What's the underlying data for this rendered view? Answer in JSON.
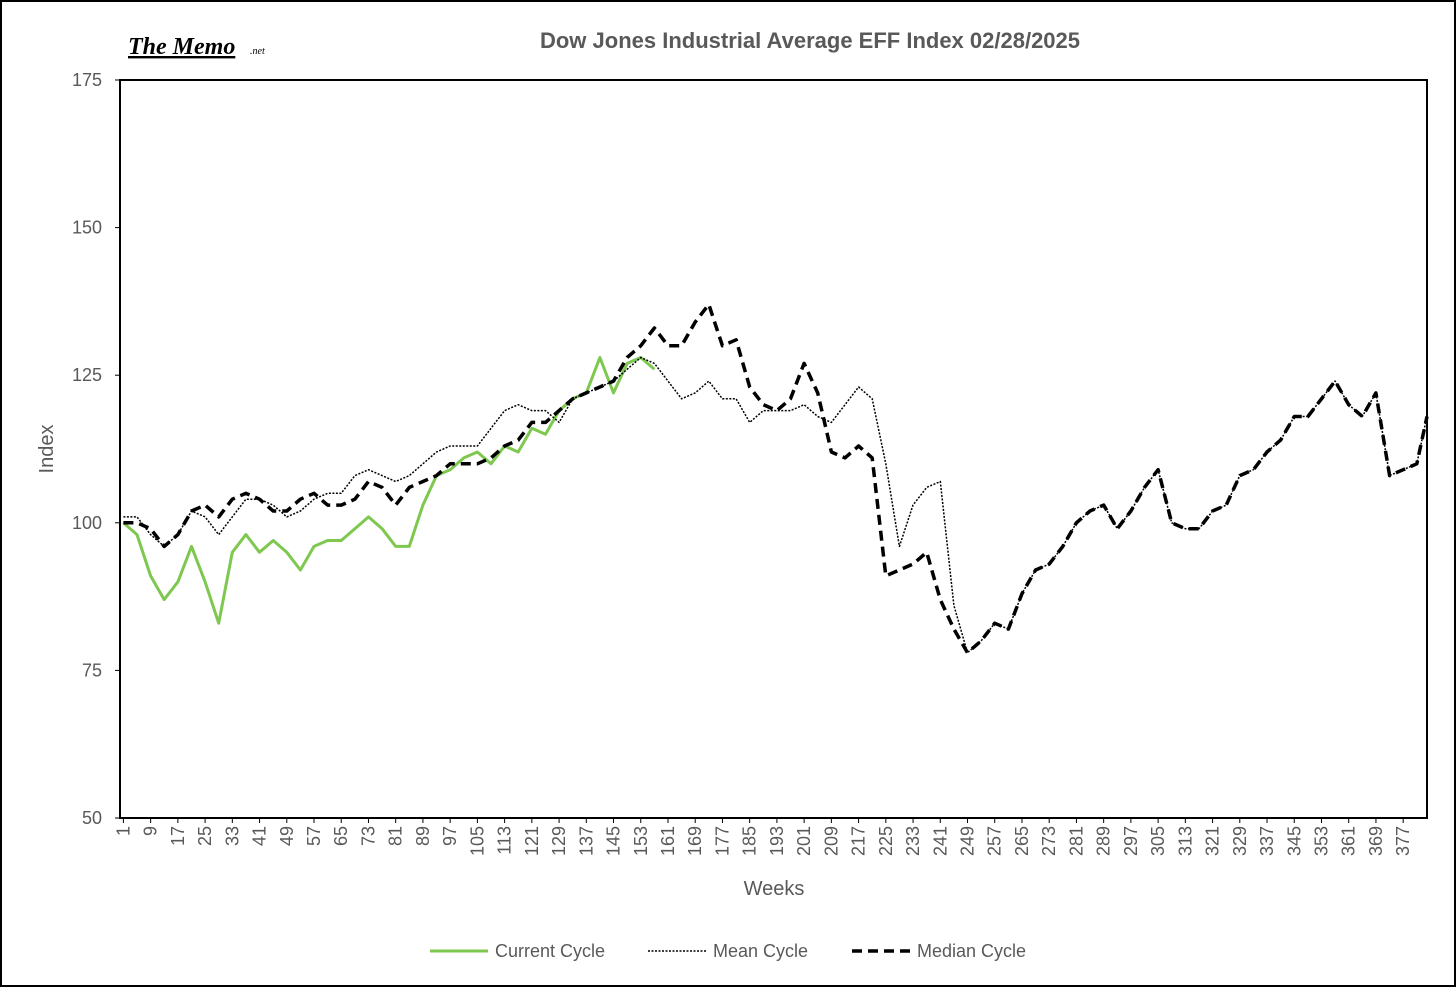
{
  "chart_data": {
    "type": "line",
    "title": "Dow Jones Industrial Average EFF Index 02/28/2025",
    "logo": "The Memo",
    "logo_suffix": ".net",
    "x_label": "Weeks",
    "y_label": "Index",
    "x": [
      1,
      5,
      9,
      13,
      17,
      21,
      25,
      29,
      33,
      37,
      41,
      45,
      49,
      53,
      57,
      61,
      65,
      69,
      73,
      77,
      81,
      85,
      89,
      93,
      97,
      101,
      105,
      109,
      113,
      117,
      121,
      125,
      129,
      133,
      137,
      141,
      145,
      149,
      153,
      157,
      161,
      165,
      169,
      173,
      177,
      181,
      185,
      189,
      193,
      197,
      201,
      205,
      209,
      213,
      217,
      221,
      225,
      229,
      233,
      237,
      241,
      245,
      249,
      253,
      257,
      261,
      265,
      269,
      273,
      277,
      281,
      285,
      289,
      293,
      297,
      301,
      305,
      309,
      313,
      317,
      321,
      325,
      329,
      333,
      337,
      341,
      345,
      349,
      353,
      357,
      361,
      365,
      369,
      373,
      377,
      381,
      384
    ],
    "series": [
      {
        "name": "Current Cycle",
        "color": "#7ec850",
        "style": "solid",
        "values": [
          100,
          98,
          91,
          87,
          90,
          96,
          90,
          83,
          95,
          98,
          95,
          97,
          95,
          92,
          96,
          97,
          97,
          99,
          101,
          99,
          96,
          96,
          103,
          108,
          109,
          111,
          112,
          110,
          113,
          112,
          116,
          115,
          119,
          121,
          122,
          128,
          122,
          127,
          128,
          126,
          null,
          null,
          null,
          null,
          null,
          null,
          null,
          null,
          null,
          null,
          null,
          null,
          null,
          null,
          null,
          null,
          null,
          null,
          null,
          null,
          null,
          null,
          null,
          null,
          null,
          null,
          null,
          null,
          null,
          null,
          null,
          null,
          null,
          null,
          null,
          null,
          null,
          null,
          null,
          null,
          null,
          null,
          null,
          null,
          null,
          null,
          null,
          null,
          null,
          null,
          null,
          null,
          null,
          null,
          null,
          null,
          null
        ]
      },
      {
        "name": "Mean Cycle",
        "color": "#000000",
        "style": "dotted",
        "values": [
          101,
          101,
          98,
          96,
          98,
          102,
          101,
          98,
          101,
          104,
          104,
          103,
          101,
          102,
          104,
          105,
          105,
          108,
          109,
          108,
          107,
          108,
          110,
          112,
          113,
          113,
          113,
          116,
          119,
          120,
          119,
          119,
          117,
          121,
          122,
          123,
          124,
          126,
          128,
          127,
          124,
          121,
          122,
          124,
          121,
          121,
          117,
          119,
          119,
          119,
          120,
          118,
          117,
          120,
          123,
          121,
          110,
          96,
          103,
          106,
          107,
          86,
          78,
          80,
          83,
          82,
          88,
          92,
          93,
          96,
          100,
          102,
          103,
          99,
          102,
          106,
          109,
          100,
          99,
          99,
          102,
          103,
          108,
          109,
          112,
          114,
          118,
          118,
          121,
          124,
          120,
          118,
          122,
          108,
          109,
          110,
          118
        ]
      },
      {
        "name": "Median Cycle",
        "color": "#000000",
        "style": "dashed",
        "values": [
          100,
          100,
          99,
          96,
          98,
          102,
          103,
          101,
          104,
          105,
          104,
          102,
          102,
          104,
          105,
          103,
          103,
          104,
          107,
          106,
          103,
          106,
          107,
          108,
          110,
          110,
          110,
          111,
          113,
          114,
          117,
          117,
          119,
          121,
          122,
          123,
          124,
          128,
          130,
          133,
          130,
          130,
          134,
          137,
          130,
          131,
          123,
          120,
          119,
          121,
          127,
          122,
          112,
          111,
          113,
          111,
          91,
          92,
          93,
          95,
          87,
          82,
          78,
          80,
          83,
          82,
          88,
          92,
          93,
          96,
          100,
          102,
          103,
          99,
          102,
          106,
          109,
          100,
          99,
          99,
          102,
          103,
          108,
          109,
          112,
          114,
          118,
          118,
          121,
          124,
          120,
          118,
          122,
          108,
          109,
          110,
          118
        ]
      }
    ],
    "xlim": [
      0,
      384
    ],
    "xticks": [
      1,
      9,
      17,
      25,
      33,
      41,
      49,
      57,
      65,
      73,
      81,
      89,
      97,
      105,
      113,
      121,
      129,
      137,
      145,
      153,
      161,
      169,
      177,
      185,
      193,
      201,
      209,
      217,
      225,
      233,
      241,
      249,
      257,
      265,
      273,
      281,
      289,
      297,
      305,
      313,
      321,
      329,
      337,
      345,
      353,
      361,
      369,
      377
    ],
    "ylim": [
      50,
      175
    ],
    "yticks": [
      50,
      75,
      100,
      125,
      150,
      175
    ],
    "grid": false,
    "legend": "bottom"
  }
}
